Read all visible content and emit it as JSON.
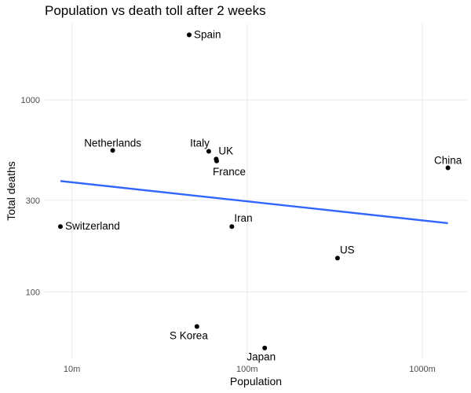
{
  "chart_data": {
    "type": "scatter",
    "title": "Population vs death toll after 2 weeks",
    "xlabel": "Population",
    "ylabel": "Total deaths",
    "x_scale": "log10",
    "y_scale": "log10",
    "xlim": [
      7000000,
      1800000000
    ],
    "ylim": [
      45,
      2500
    ],
    "x_ticks": [
      {
        "value": 10000000,
        "label": "10m"
      },
      {
        "value": 100000000,
        "label": "100m"
      },
      {
        "value": 1000000000,
        "label": "1000m"
      }
    ],
    "y_ticks": [
      {
        "value": 100,
        "label": "100"
      },
      {
        "value": 300,
        "label": "300"
      },
      {
        "value": 1000,
        "label": "1000"
      }
    ],
    "grid": true,
    "points": [
      {
        "label": "Spain",
        "x": 46700000,
        "y": 2182,
        "label_pos": "right"
      },
      {
        "label": "Netherlands",
        "x": 17100000,
        "y": 546,
        "label_pos": "above"
      },
      {
        "label": "Italy",
        "x": 60400000,
        "y": 540,
        "label_pos": "above-left"
      },
      {
        "label": "UK",
        "x": 66600000,
        "y": 492,
        "label_pos": "above-right"
      },
      {
        "label": "France",
        "x": 67000000,
        "y": 481,
        "label_pos": "below-right"
      },
      {
        "label": "China",
        "x": 1400000000,
        "y": 443,
        "label_pos": "above"
      },
      {
        "label": "Switzerland",
        "x": 8600000,
        "y": 219,
        "label_pos": "right"
      },
      {
        "label": "Iran",
        "x": 81800000,
        "y": 219,
        "label_pos": "above-right"
      },
      {
        "label": "US",
        "x": 328000000,
        "y": 150,
        "label_pos": "above-right"
      },
      {
        "label": "S Korea",
        "x": 51700000,
        "y": 66,
        "label_pos": "below-left"
      },
      {
        "label": "Japan",
        "x": 126000000,
        "y": 51,
        "label_pos": "below-left"
      }
    ],
    "trendline": {
      "x": [
        8600000,
        1400000000
      ],
      "y": [
        378,
        228
      ],
      "color": "#3366FF"
    }
  },
  "colors": {
    "point": "#000000",
    "trend": "#3366FF",
    "grid": "#ebebeb",
    "axis_text": "#4d4d4d"
  }
}
